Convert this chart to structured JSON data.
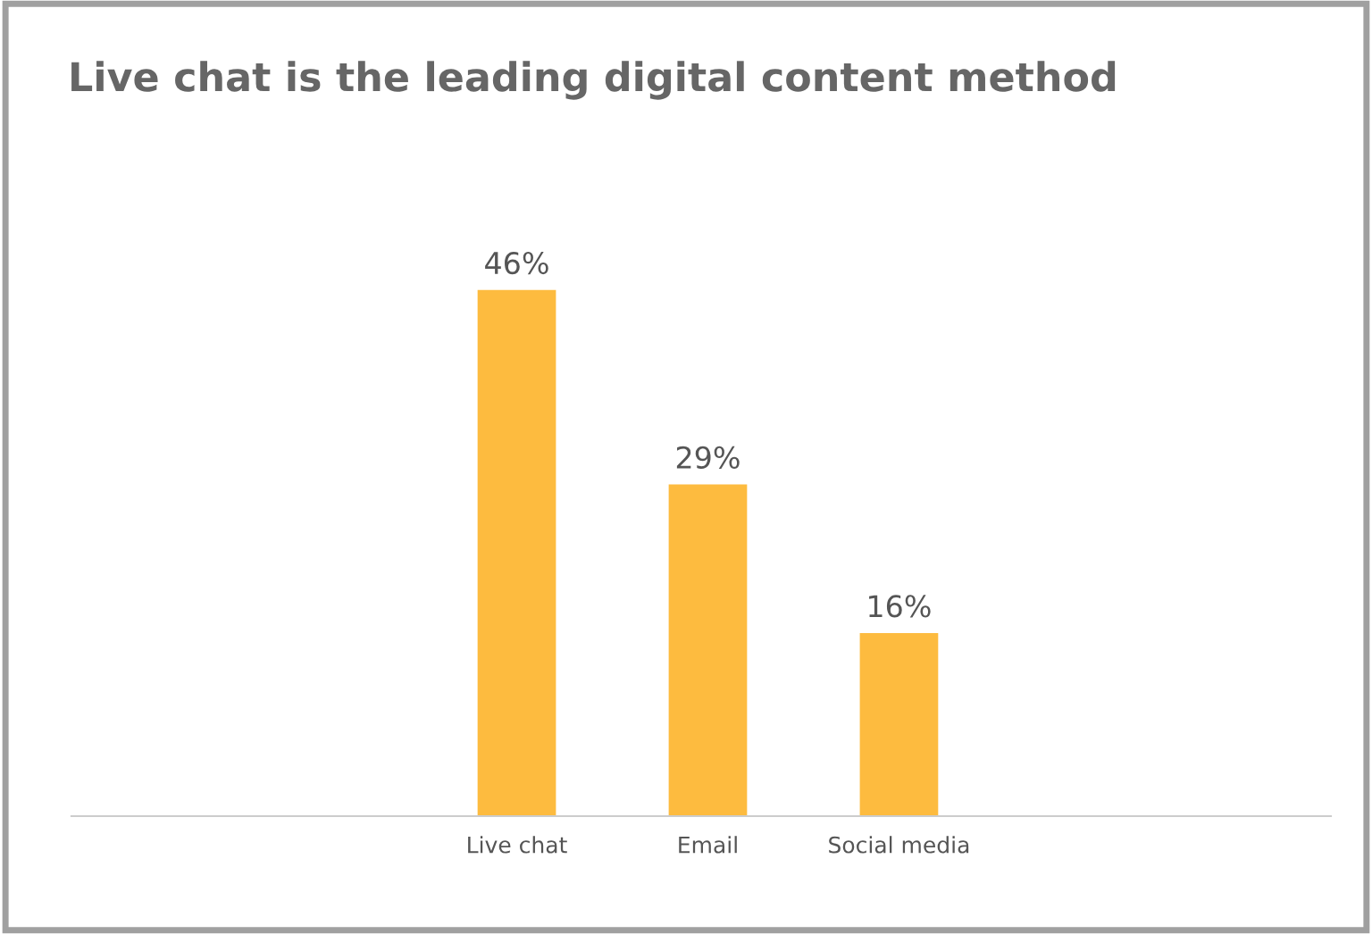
{
  "chart_data": {
    "type": "bar",
    "title": "Live chat is the leading digital content method",
    "categories": [
      "Live chat",
      "Email",
      "Social media"
    ],
    "values": [
      46,
      29,
      16
    ],
    "value_labels": [
      "46%",
      "29%",
      "16%"
    ],
    "color": "#fdbb3f"
  }
}
